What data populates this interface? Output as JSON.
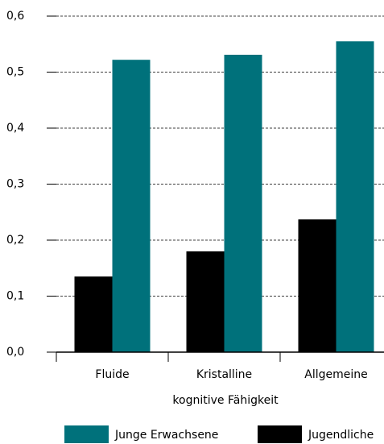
{
  "chart_data": {
    "type": "bar",
    "x_label": "kognitive Fähigkeit",
    "categories": [
      "Fluide",
      "Kristalline",
      "Allgemeine"
    ],
    "series": [
      {
        "name": "Jugendliche",
        "color": "#000000",
        "values": [
          0.135,
          0.18,
          0.237
        ]
      },
      {
        "name": "Junge Erwachsene",
        "color": "#00717b",
        "values": [
          0.522,
          0.531,
          0.555
        ]
      }
    ],
    "ylim": [
      0,
      0.6
    ],
    "yticks": [
      {
        "value": 0,
        "label": "0,0"
      },
      {
        "value": 0.1,
        "label": "0,1"
      },
      {
        "value": 0.2,
        "label": "0,2"
      },
      {
        "value": 0.3,
        "label": "0,3"
      },
      {
        "value": 0.4,
        "label": "0,4"
      },
      {
        "value": 0.5,
        "label": "0,5"
      },
      {
        "value": 0.6,
        "label": "0,6"
      }
    ],
    "grid": true
  }
}
